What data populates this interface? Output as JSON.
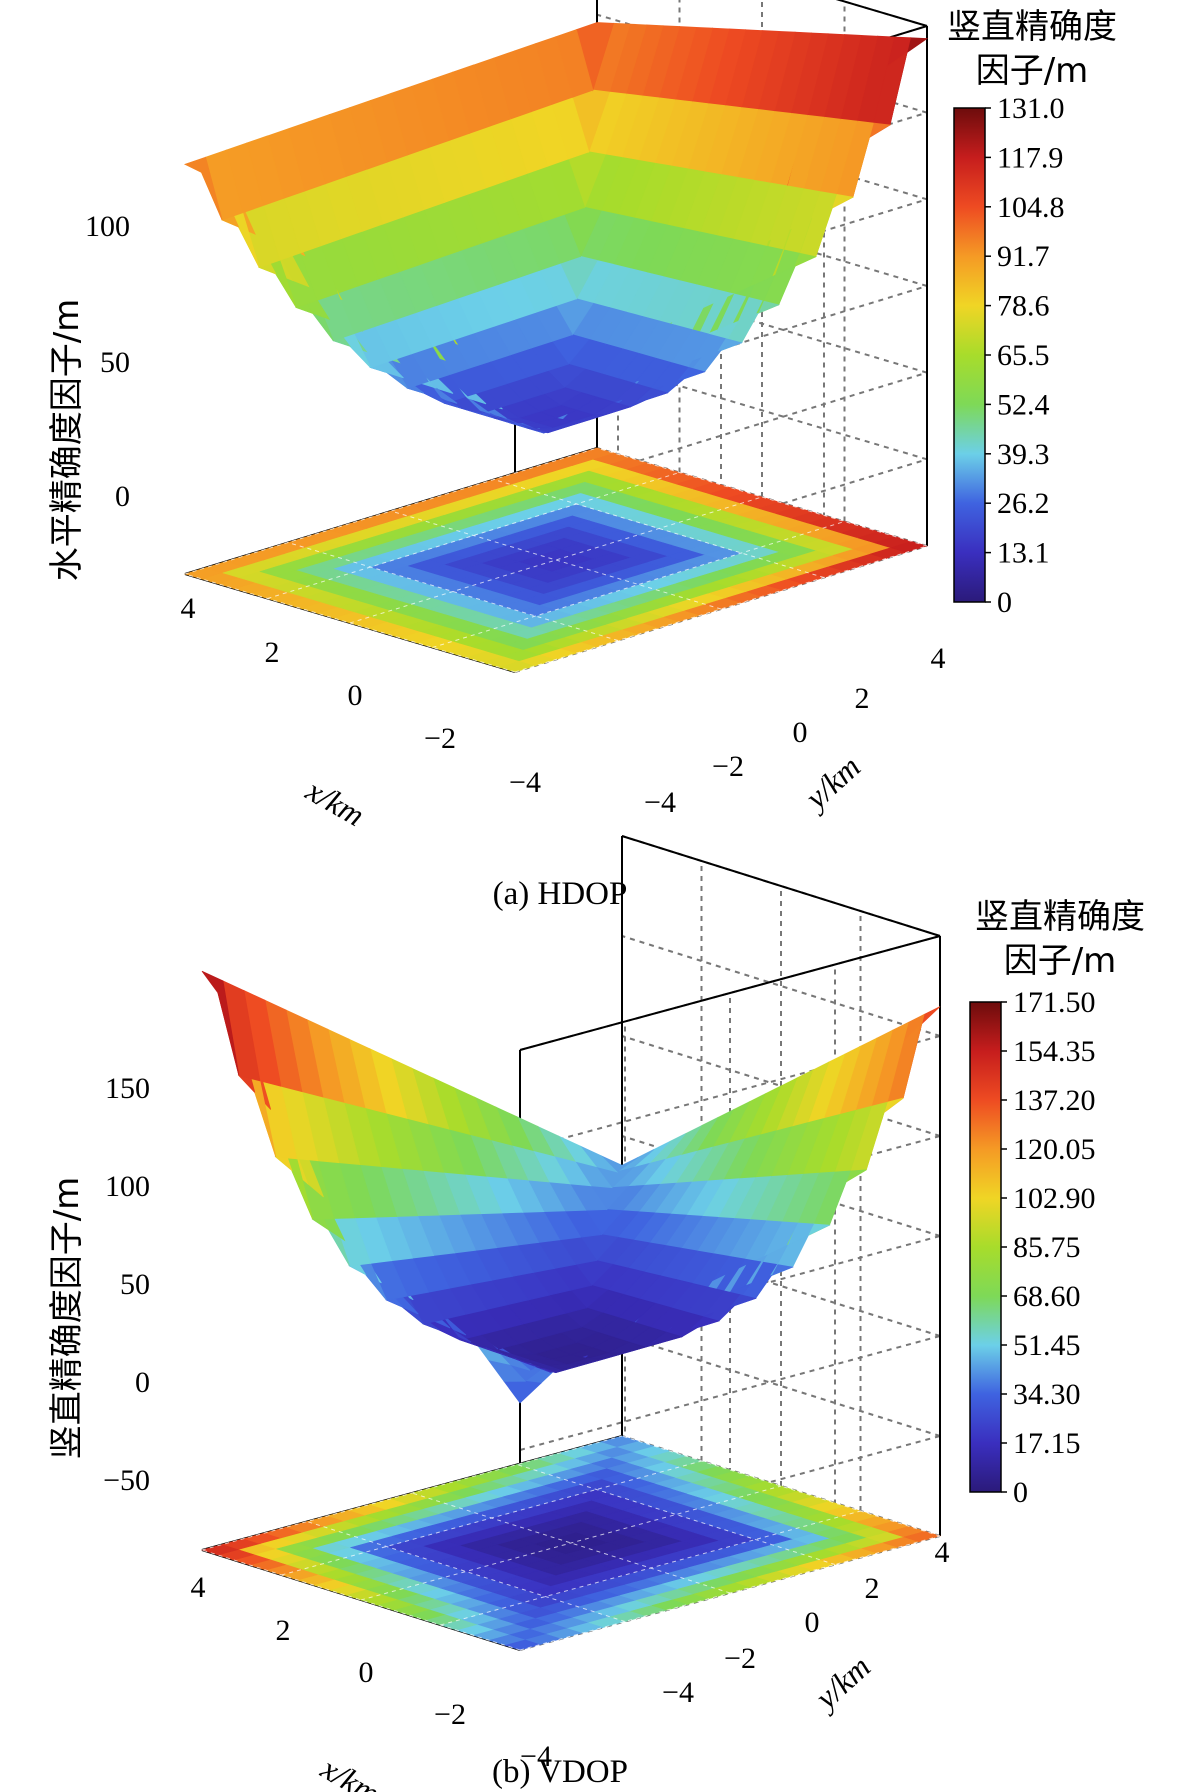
{
  "chart_data": [
    {
      "type": "surface3d",
      "caption": "(a) HDOP",
      "zlabel": "水平精确度因子/m",
      "xlabel": "x/km",
      "ylabel": "y/km",
      "x_ticks": [
        "4",
        "2",
        "0",
        "−2",
        "−4"
      ],
      "y_ticks": [
        "4",
        "2",
        "0",
        "−2",
        "−4"
      ],
      "z_ticks": [
        "100",
        "50",
        "0"
      ],
      "z_tick_values": [
        100,
        50,
        0
      ],
      "xlim": [
        -4,
        4
      ],
      "ylim": [
        -4,
        4
      ],
      "zlim": [
        -30,
        135
      ],
      "colorbar": {
        "title_line1": "竖直精确度",
        "title_line2": "因子/m",
        "ticks": [
          "131.0",
          "117.9",
          "104.8",
          "91.7",
          "78.6",
          "65.5",
          "52.4",
          "39.3",
          "26.2",
          "13.1",
          "0"
        ],
        "min": 0,
        "max": 131
      },
      "surface": {
        "description_values": "HDOP over (x,y) in [-4,4] km",
        "corner_values": {
          "x-4_y4": 131,
          "x4_y4": 105,
          "x4_y-4": 100,
          "x-4_y-4": 80
        },
        "minimum": 15
      }
    },
    {
      "type": "surface3d",
      "caption": "(b) VDOP",
      "zlabel": "竖直精确度因子/m",
      "xlabel": "x/km",
      "ylabel": "y/km",
      "x_ticks": [
        "4",
        "2",
        "0",
        "−2",
        "−4"
      ],
      "y_ticks": [
        "4",
        "2",
        "0",
        "−2",
        "−4"
      ],
      "z_ticks": [
        "150",
        "100",
        "50",
        "0",
        "−50"
      ],
      "z_tick_values": [
        150,
        100,
        50,
        0,
        -50
      ],
      "xlim": [
        -4,
        4
      ],
      "ylim": [
        -4,
        4
      ],
      "zlim": [
        -75,
        180
      ],
      "colorbar": {
        "title_line1": "竖直精确度",
        "title_line2": "因子/m",
        "ticks": [
          "171.50",
          "154.35",
          "137.20",
          "120.05",
          "102.90",
          "85.75",
          "68.60",
          "51.45",
          "34.30",
          "17.15",
          "0"
        ],
        "min": 0,
        "max": 171.5
      },
      "surface": {
        "description_values": "VDOP over (x,y) in [-4,4] km",
        "corner_values": {
          "x-4_y4": 150,
          "x4_y4": 40,
          "x4_y-4": 171,
          "x-4_y-4": 30
        },
        "minimum": 5
      }
    }
  ]
}
